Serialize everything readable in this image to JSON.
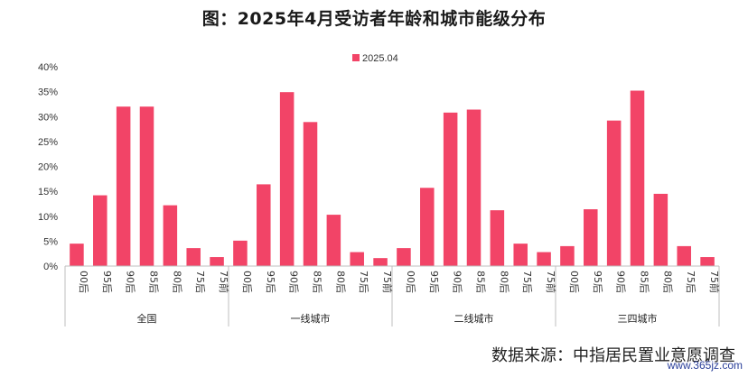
{
  "chart_data": {
    "type": "bar",
    "title": "图：2025年4月受访者年龄和城市能级分布",
    "groups": [
      "全国",
      "一线城市",
      "二线城市",
      "三四城市"
    ],
    "categories": [
      "00后",
      "95后",
      "90后",
      "85后",
      "80后",
      "75后",
      "75前"
    ],
    "series": [
      {
        "name": "2025.04",
        "values": [
          [
            4.5,
            14.2,
            32.0,
            32.0,
            12.2,
            3.6,
            1.8
          ],
          [
            5.1,
            16.4,
            34.9,
            28.9,
            10.3,
            2.8,
            1.6
          ],
          [
            3.6,
            15.7,
            30.8,
            31.4,
            11.2,
            4.5,
            2.8
          ],
          [
            4.0,
            11.4,
            29.2,
            35.2,
            14.5,
            4.0,
            1.8
          ]
        ]
      }
    ],
    "ylim": [
      0,
      40
    ],
    "yticks": [
      "0%",
      "5%",
      "10%",
      "15%",
      "20%",
      "25%",
      "30%",
      "35%",
      "40%"
    ],
    "grid": false,
    "legend": "top-center",
    "color": "#f24467"
  },
  "source": "数据来源：中指居民置业意愿调查",
  "watermark": "www.365jz.com"
}
